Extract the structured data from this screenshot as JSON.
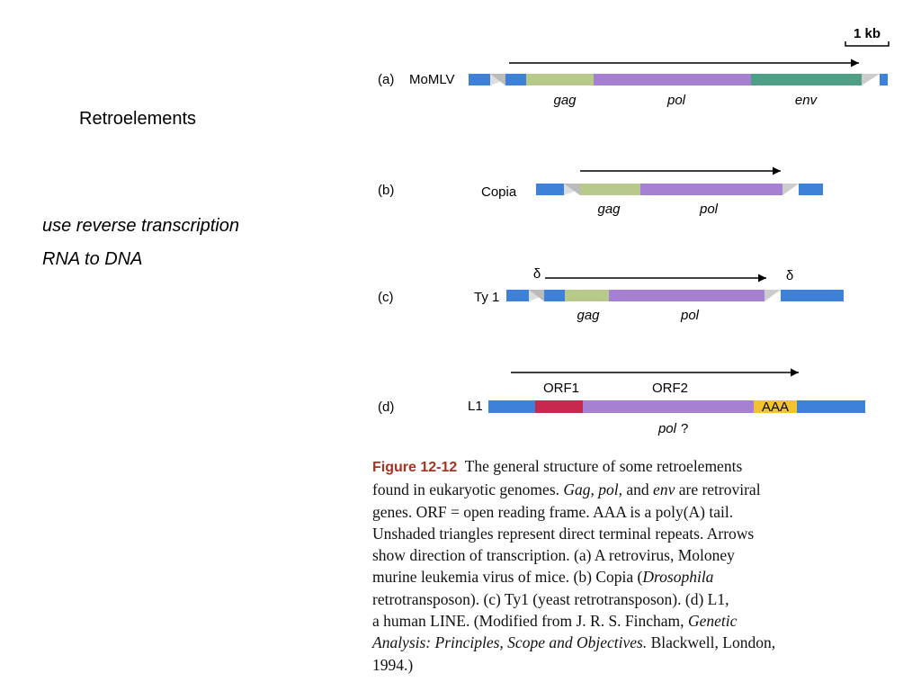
{
  "slide": {
    "title": "Retroelements",
    "notes": [
      "use reverse transcription",
      "RNA to DNA"
    ]
  },
  "figure": {
    "scale": "1 kb",
    "rows": [
      {
        "label": "(a)",
        "name": "MoMLV",
        "genes": [
          "gag",
          "pol",
          "env"
        ]
      },
      {
        "label": "(b)",
        "name": "Copia",
        "genes": [
          "gag",
          "pol"
        ]
      },
      {
        "label": "(c)",
        "name": "Ty 1",
        "genes": [
          "gag",
          "pol"
        ],
        "repeats": [
          "δ",
          "δ"
        ]
      },
      {
        "label": "(d)",
        "name": "L1",
        "orfs": [
          "ORF1",
          "ORF2"
        ],
        "tail": "AAA",
        "gene": "pol",
        "gene_note": "?"
      }
    ],
    "caption": [
      [
        {
          "text": "Figure 12-12",
          "style": "label"
        },
        {
          "text": "  The general structure of some retroelements"
        }
      ],
      [
        {
          "text": "found in eukaryotic genomes. "
        },
        {
          "text": "Gag, pol,",
          "style": "italic"
        },
        {
          "text": " and "
        },
        {
          "text": "env",
          "style": "italic"
        },
        {
          "text": " are retroviral"
        }
      ],
      [
        {
          "text": "genes. ORF = open reading frame. AAA is a poly(A) tail."
        }
      ],
      [
        {
          "text": "Unshaded triangles represent direct terminal repeats. Arrows"
        }
      ],
      [
        {
          "text": "show direction of transcription. (a) A retrovirus, Moloney"
        }
      ],
      [
        {
          "text": "murine leukemia virus of mice. (b) Copia ("
        },
        {
          "text": "Drosophila",
          "style": "italic"
        }
      ],
      [
        {
          "text": "retrotransposon). (c) Ty1 (yeast retrotransposon). (d) L1,"
        }
      ],
      [
        {
          "text": "a human LINE. (Modified from J. R. S. Fincham, "
        },
        {
          "text": "Genetic",
          "style": "italic"
        }
      ],
      [
        {
          "text": "Analysis: Principles, Scope and Objectives.",
          "style": "italic"
        },
        {
          "text": " Blackwell, London,"
        }
      ],
      [
        {
          "text": "1994.)"
        }
      ]
    ]
  }
}
